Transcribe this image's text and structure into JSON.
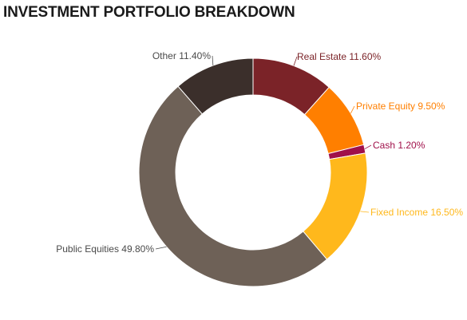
{
  "chart_data": {
    "type": "pie",
    "title": "INVESTMENT PORTFOLIO BREAKDOWN",
    "donut": true,
    "slices": [
      {
        "label": "Real Estate 11.60%",
        "value": 11.6,
        "color": "#7b2328",
        "label_color": "#7b2328"
      },
      {
        "label": "Private Equity 9.50%",
        "value": 9.5,
        "color": "#ff7f00",
        "label_color": "#ff7f00"
      },
      {
        "label": "Cash 1.20%",
        "value": 1.2,
        "color": "#a0104a",
        "label_color": "#a0104a"
      },
      {
        "label": "Fixed Income 16.50%",
        "value": 16.5,
        "color": "#ffb81c",
        "label_color": "#ffb81c"
      },
      {
        "label": "Public Equities 49.80%",
        "value": 49.8,
        "color": "#6e6157",
        "label_color": "#4a4a4a"
      },
      {
        "label": "Other 11.40%",
        "value": 11.4,
        "color": "#3b2f2b",
        "label_color": "#4a4a4a"
      }
    ]
  }
}
